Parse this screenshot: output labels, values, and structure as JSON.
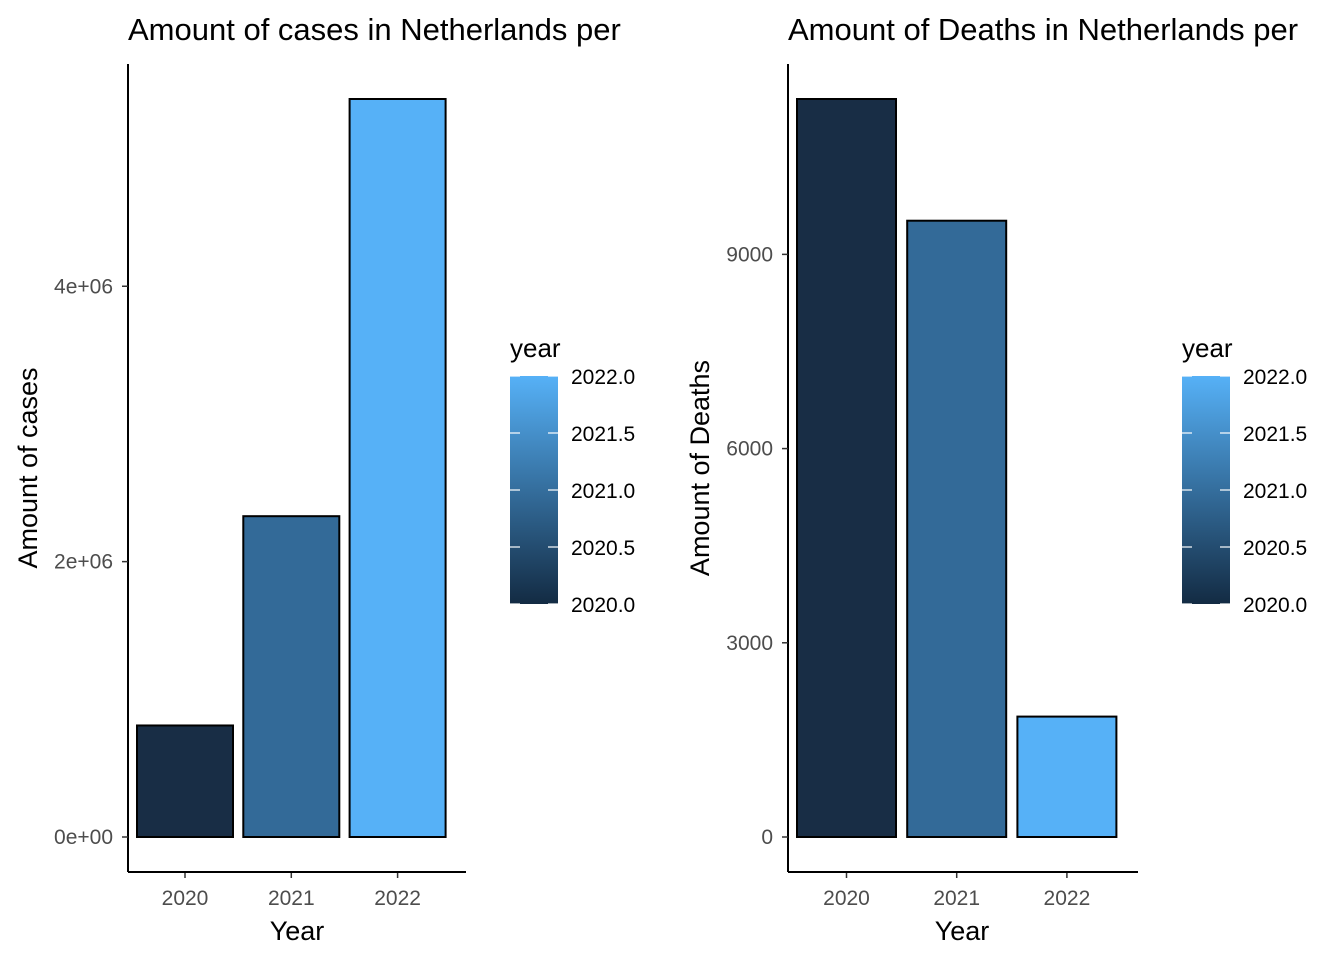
{
  "chart_data": [
    {
      "type": "bar",
      "title": "Amount of cases in Netherlands per",
      "xlabel": "Year",
      "ylabel": "Amount of cases",
      "categories": [
        "2020",
        "2021",
        "2022"
      ],
      "values": [
        810000,
        2330000,
        5360000
      ],
      "ylim": [
        0,
        5360000
      ],
      "yticks": [
        0,
        2000000,
        4000000
      ],
      "ytick_labels": [
        "0e+00",
        "2e+06",
        "4e+06"
      ],
      "grid": false,
      "legend": {
        "title": "year",
        "placement": "right",
        "labels": [
          "2022.0",
          "2021.5",
          "2021.0",
          "2020.5",
          "2020.0"
        ],
        "values": [
          2022.0,
          2021.5,
          2021.0,
          2020.5,
          2020.0
        ],
        "range": [
          2020,
          2022
        ],
        "low_color": "#132B43",
        "high_color": "#56B1F7"
      },
      "bar_colors": [
        "#182D45",
        "#336A98",
        "#56B1F7"
      ]
    },
    {
      "type": "bar",
      "title": "Amount of Deaths in Netherlands per",
      "xlabel": "Year",
      "ylabel": "Amount of Deaths",
      "categories": [
        "2020",
        "2021",
        "2022"
      ],
      "values": [
        11400,
        9520,
        1860
      ],
      "ylim": [
        0,
        11400
      ],
      "yticks": [
        0,
        3000,
        6000,
        9000
      ],
      "ytick_labels": [
        "0",
        "3000",
        "6000",
        "9000"
      ],
      "grid": false,
      "legend": {
        "title": "year",
        "placement": "right",
        "labels": [
          "2022.0",
          "2021.5",
          "2021.0",
          "2020.5",
          "2020.0"
        ],
        "values": [
          2022.0,
          2021.5,
          2021.0,
          2020.5,
          2020.0
        ],
        "range": [
          2020,
          2022
        ],
        "low_color": "#132B43",
        "high_color": "#56B1F7"
      },
      "bar_colors": [
        "#182D45",
        "#336A98",
        "#56B1F7"
      ]
    }
  ]
}
